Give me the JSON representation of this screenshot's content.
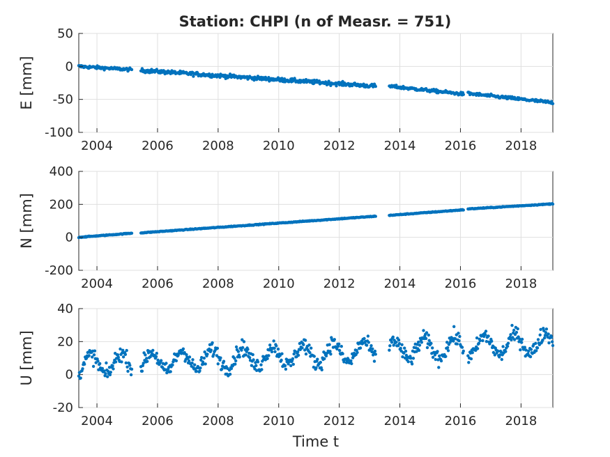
{
  "chart_data": [
    {
      "type": "scatter",
      "title": "Station: CHPI (n of Measr. = 751)",
      "xlabel": "",
      "ylabel": "E [mm]",
      "xlim": [
        2003.4,
        2019.05
      ],
      "ylim": [
        -100,
        50
      ],
      "xticks": [
        2004,
        2006,
        2008,
        2010,
        2012,
        2014,
        2016,
        2018
      ],
      "yticks": [
        50,
        0,
        -50,
        -100
      ],
      "grid": true,
      "marker_color": "#0072BD",
      "trend_segments": [
        {
          "x": [
            2003.4,
            2005.15
          ],
          "y": [
            0,
            -5
          ],
          "noise": 2
        },
        {
          "x": [
            2005.45,
            2013.2
          ],
          "y": [
            -6,
            -30
          ],
          "noise": 2.5
        },
        {
          "x": [
            2013.65,
            2016.1
          ],
          "y": [
            -30,
            -42
          ],
          "noise": 2
        },
        {
          "x": [
            2016.25,
            2019.05
          ],
          "y": [
            -41,
            -55
          ],
          "noise": 2
        }
      ]
    },
    {
      "type": "scatter",
      "title": "",
      "xlabel": "",
      "ylabel": "N [mm]",
      "xlim": [
        2003.4,
        2019.05
      ],
      "ylim": [
        -200,
        400
      ],
      "xticks": [
        2004,
        2006,
        2008,
        2010,
        2012,
        2014,
        2016,
        2018
      ],
      "yticks": [
        400,
        200,
        0,
        -200
      ],
      "grid": true,
      "marker_color": "#0072BD",
      "trend_segments": [
        {
          "x": [
            2003.4,
            2005.15
          ],
          "y": [
            0,
            25
          ],
          "noise": 2
        },
        {
          "x": [
            2005.45,
            2013.2
          ],
          "y": [
            27,
            128
          ],
          "noise": 2
        },
        {
          "x": [
            2013.65,
            2016.1
          ],
          "y": [
            133,
            167
          ],
          "noise": 2
        },
        {
          "x": [
            2016.25,
            2019.05
          ],
          "y": [
            172,
            203
          ],
          "noise": 2
        }
      ]
    },
    {
      "type": "scatter",
      "title": "",
      "xlabel": "Time t",
      "ylabel": "U [mm]",
      "xlim": [
        2003.4,
        2019.05
      ],
      "ylim": [
        -20,
        40
      ],
      "xticks": [
        2004,
        2006,
        2008,
        2010,
        2012,
        2014,
        2016,
        2018
      ],
      "yticks": [
        40,
        20,
        0,
        -20
      ],
      "grid": true,
      "marker_color": "#0072BD",
      "seasonal_model": {
        "base_2004": 6,
        "trend_per_year": 0.9,
        "annual_amplitude": 6,
        "noise": 4
      },
      "trend_segments": [
        {
          "x": [
            2003.4,
            2005.15
          ]
        },
        {
          "x": [
            2005.45,
            2013.2
          ]
        },
        {
          "x": [
            2013.65,
            2016.1
          ]
        },
        {
          "x": [
            2016.25,
            2019.05
          ]
        }
      ]
    }
  ]
}
